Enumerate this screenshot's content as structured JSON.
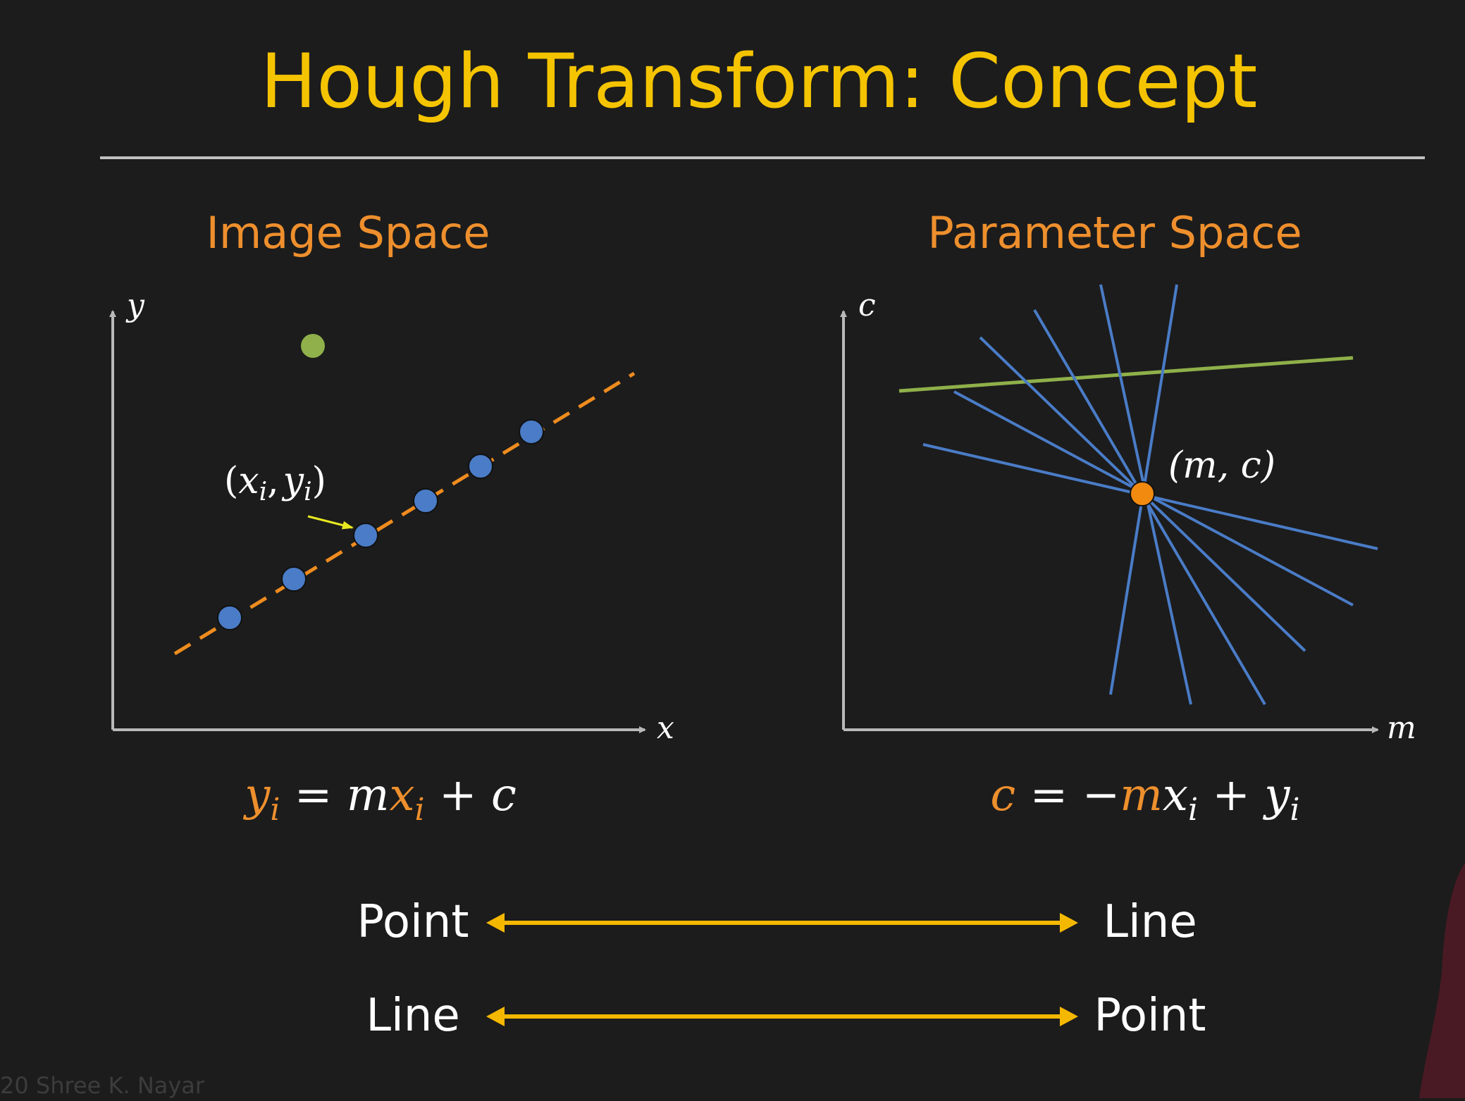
{
  "slide": {
    "title": "Hough Transform: Concept",
    "footer": "20 Shree K. Nayar"
  },
  "image_space": {
    "heading": "Image Space",
    "x_axis": "x",
    "y_axis": "y",
    "point_label": {
      "open": "(",
      "x": "x",
      "comma": ",",
      "y": "y",
      "sub": "i",
      "close": ")"
    },
    "equation": {
      "lhs": "y",
      "lhs_sub": "i",
      "eq": " = m",
      "x": "x",
      "x_sub": "i",
      "rest": " + c"
    },
    "colors": {
      "points": "#4a7cc7",
      "line": "#ef8c1e",
      "outlier": "#8fb04a",
      "arrow": "#e8e820"
    }
  },
  "parameter_space": {
    "heading": "Parameter Space",
    "x_axis": "m",
    "y_axis": "c",
    "point_label": "(m, c)",
    "equation": {
      "lhs": "c",
      "eq": " = −",
      "m": "m",
      "x": "x",
      "x_sub": "i",
      "plus": " + y",
      "y_sub": "i"
    },
    "colors": {
      "lines": "#4a7cc7",
      "outlier_line": "#8fb04a",
      "point": "#f28a10"
    }
  },
  "mappings": [
    {
      "left": "Point",
      "right": "Line"
    },
    {
      "left": "Line",
      "right": "Point"
    }
  ],
  "colors": {
    "background": "#1c1c1c",
    "title": "#f5c400",
    "heading": "#ee8f2d",
    "arrow": "#f5b800",
    "axis": "#b8b8b8"
  }
}
